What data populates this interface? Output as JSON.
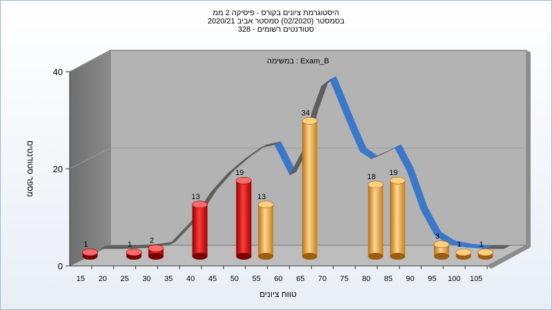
{
  "header": {
    "line1": "היסטוגרמת ציונים בקורס - פיסיקה 2 ממ",
    "line2": "בסמסטר  (02/2020)  סמסטר אביב 2020/21",
    "line3": "סטודנטים רשומים - 328"
  },
  "chart_data": {
    "type": "bar",
    "annotation": "במשימה : Exam_B",
    "xlabel": "טווח ציונים",
    "ylabel": "מספר סטודנטים",
    "ylim": [
      0,
      40
    ],
    "yticks": [
      0,
      20,
      40
    ],
    "categories": [
      "15",
      "20",
      "25",
      "30",
      "35",
      "40",
      "45",
      "50",
      "55",
      "60",
      "65",
      "70",
      "75",
      "80",
      "85",
      "90",
      "95",
      "100",
      "105"
    ],
    "bars": [
      {
        "category": "15",
        "value": 1,
        "color": "red"
      },
      {
        "category": "25",
        "value": 1,
        "color": "red"
      },
      {
        "category": "30",
        "value": 2,
        "color": "red"
      },
      {
        "category": "40",
        "value": 13,
        "color": "red"
      },
      {
        "category": "50",
        "value": 19,
        "color": "red"
      },
      {
        "category": "55",
        "value": 13,
        "color": "orange"
      },
      {
        "category": "65",
        "value": 34,
        "color": "orange"
      },
      {
        "category": "80",
        "value": 18,
        "color": "orange"
      },
      {
        "category": "85",
        "value": 19,
        "color": "orange"
      },
      {
        "category": "95",
        "value": 3,
        "color": "orange"
      },
      {
        "category": "100",
        "value": 1,
        "color": "orange"
      },
      {
        "category": "105",
        "value": 1,
        "color": "orange"
      }
    ],
    "curve_colors": {
      "up": "#5e5e5e",
      "down": "#3a78c9"
    },
    "bar_colors": {
      "red": "#e01818",
      "orange": "#eba648"
    },
    "grid": true
  }
}
